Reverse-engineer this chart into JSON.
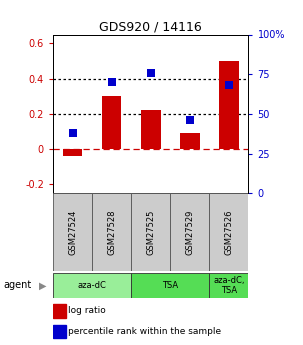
{
  "title": "GDS920 / 14116",
  "samples": [
    "GSM27524",
    "GSM27528",
    "GSM27525",
    "GSM27529",
    "GSM27526"
  ],
  "log_ratios": [
    -0.04,
    0.3,
    0.22,
    0.09,
    0.5
  ],
  "percentile_ranks": [
    0.38,
    0.7,
    0.76,
    0.46,
    0.68
  ],
  "bar_color": "#cc0000",
  "dot_color": "#0000cc",
  "ylim_left": [
    -0.25,
    0.65
  ],
  "ylim_right": [
    0.0,
    1.0
  ],
  "yticks_left": [
    -0.2,
    0.0,
    0.2,
    0.4,
    0.6
  ],
  "ytick_labels_left": [
    "-0.2",
    "0",
    "0.2",
    "0.4",
    "0.6"
  ],
  "yticks_right": [
    0.0,
    0.25,
    0.5,
    0.75,
    1.0
  ],
  "ytick_labels_right": [
    "0",
    "25",
    "50",
    "75",
    "100%"
  ],
  "hlines": [
    0.0,
    0.2,
    0.4
  ],
  "hline_styles": [
    "dashed",
    "dotted",
    "dotted"
  ],
  "hline_colors": [
    "#cc0000",
    "#000000",
    "#000000"
  ],
  "agent_groups": [
    {
      "label": "aza-dC",
      "col_span": [
        0,
        2
      ],
      "color": "#99ee99"
    },
    {
      "label": "TSA",
      "col_span": [
        2,
        4
      ],
      "color": "#55dd55"
    },
    {
      "label": "aza-dC,\nTSA",
      "col_span": [
        4,
        5
      ],
      "color": "#55dd55"
    }
  ],
  "agent_label": "agent",
  "legend_bar_label": "log ratio",
  "legend_dot_label": "percentile rank within the sample",
  "background_color": "#ffffff",
  "plot_bg": "#ffffff",
  "tick_color_left": "#cc0000",
  "tick_color_right": "#0000cc",
  "bar_width": 0.5,
  "dot_size": 40,
  "sample_bg": "#cccccc"
}
